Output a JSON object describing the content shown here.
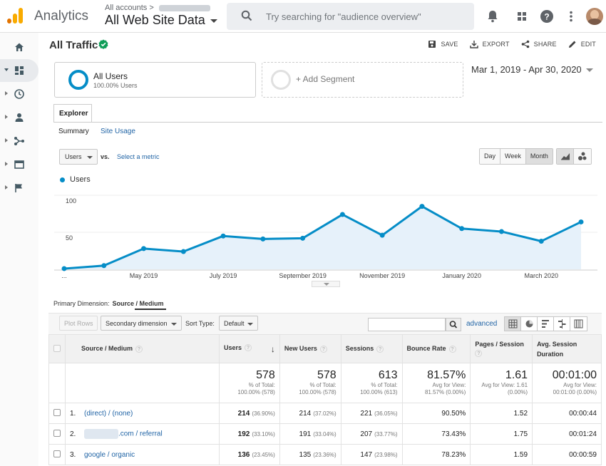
{
  "header": {
    "app_name": "Analytics",
    "account_crumb": "All accounts",
    "view_name": "All Web Site Data",
    "search_placeholder": "Try searching for \"audience overview\"",
    "icons": [
      "notifications-icon",
      "apps-grid-icon",
      "help-icon",
      "more-vert-icon",
      "avatar"
    ]
  },
  "sidebar": {
    "items": [
      {
        "icon": "home-icon"
      },
      {
        "icon": "customization-icon",
        "active": true
      },
      {
        "icon": "realtime-clock-icon"
      },
      {
        "icon": "audience-person-icon"
      },
      {
        "icon": "acquisition-icon"
      },
      {
        "icon": "behavior-icon"
      },
      {
        "icon": "conversions-flag-icon"
      }
    ]
  },
  "page": {
    "title": "All Traffic",
    "actions": {
      "save": "SAVE",
      "export": "EXPORT",
      "share": "SHARE",
      "edit": "EDIT"
    }
  },
  "segments": {
    "active_title": "All Users",
    "active_subtitle": "100.00% Users",
    "add_label": "+ Add Segment"
  },
  "date_range": "Mar 1, 2019 - Apr 30, 2020",
  "tabs": {
    "explorer": "Explorer",
    "summary": "Summary",
    "site_usage": "Site Usage"
  },
  "chart_controls": {
    "metric": "Users",
    "vs": "vs.",
    "select_metric": "Select a metric",
    "periods": [
      "Day",
      "Week",
      "Month"
    ],
    "selected_period": "Month"
  },
  "chart_data": {
    "type": "area",
    "series": [
      {
        "name": "Users",
        "values": [
          1,
          5,
          28,
          24,
          45,
          41,
          42,
          74,
          46,
          85,
          55,
          51,
          38,
          64
        ]
      }
    ],
    "y_ticks": [
      "100",
      "50"
    ],
    "ylim": [
      0,
      100
    ],
    "x_tick_labels": [
      "May 2019",
      "July 2019",
      "September 2019",
      "November 2019",
      "January 2020",
      "March 2020"
    ],
    "first_x_label": "...",
    "color": "#058dc7",
    "fill": "#e6f1fa"
  },
  "table_controls": {
    "primary_dimension_label": "Primary Dimension:",
    "primary_dimension_value": "Source / Medium",
    "plot_rows": "Plot Rows",
    "secondary_dimension": "Secondary dimension",
    "sort_type_label": "Sort Type:",
    "sort_type_value": "Default",
    "advanced": "advanced"
  },
  "table": {
    "headers": {
      "source_medium": "Source / Medium",
      "users": "Users",
      "new_users": "New Users",
      "sessions": "Sessions",
      "bounce_rate": "Bounce Rate",
      "pages_session": "Pages / Session",
      "avg_duration": "Avg. Session Duration"
    },
    "totals": {
      "users": {
        "big": "578",
        "l1": "% of Total:",
        "l2": "100.00% (578)"
      },
      "new_users": {
        "big": "578",
        "l1": "% of Total:",
        "l2": "100.00% (578)"
      },
      "sessions": {
        "big": "613",
        "l1": "% of Total:",
        "l2": "100.00% (613)"
      },
      "bounce_rate": {
        "big": "81.57%",
        "l1": "Avg for View:",
        "l2": "81.57% (0.00%)"
      },
      "pages_session": {
        "big": "1.61",
        "l1": "Avg for View: 1.61",
        "l2": "(0.00%)"
      },
      "avg_duration": {
        "big": "00:01:00",
        "l1": "Avg for View:",
        "l2": "00:01:00 (0.00%)"
      }
    },
    "rows": [
      {
        "idx": "1.",
        "source": "(direct) / (none)",
        "users": "214",
        "users_pct": "(36.90%)",
        "new_users": "214",
        "new_users_pct": "(37.02%)",
        "sessions": "221",
        "sessions_pct": "(36.05%)",
        "bounce": "90.50%",
        "pages": "1.52",
        "duration": "00:00:44"
      },
      {
        "idx": "2.",
        "source": ".com / referral",
        "users": "192",
        "users_pct": "(33.10%)",
        "new_users": "191",
        "new_users_pct": "(33.04%)",
        "sessions": "207",
        "sessions_pct": "(33.77%)",
        "bounce": "73.43%",
        "pages": "1.75",
        "duration": "00:01:24"
      },
      {
        "idx": "3.",
        "source": "google / organic",
        "users": "136",
        "users_pct": "(23.45%)",
        "new_users": "135",
        "new_users_pct": "(23.36%)",
        "sessions": "147",
        "sessions_pct": "(23.98%)",
        "bounce": "78.23%",
        "pages": "1.59",
        "duration": "00:00:59"
      }
    ]
  }
}
